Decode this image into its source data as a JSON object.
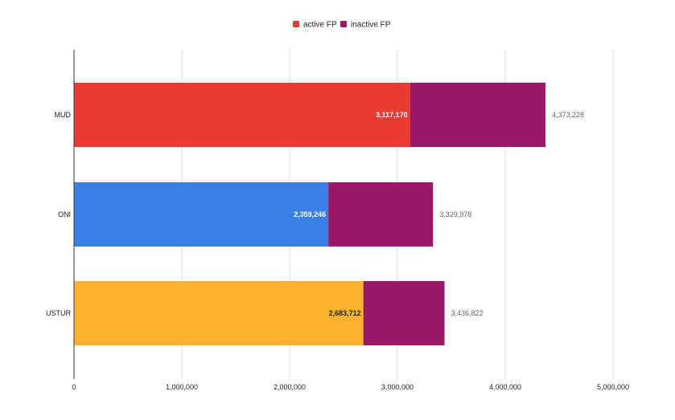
{
  "chart_data": {
    "type": "bar",
    "orientation": "horizontal",
    "stacked": true,
    "title": "",
    "xlabel": "",
    "ylabel": "",
    "categories": [
      "MUD",
      "ONI",
      "USTUR"
    ],
    "xlim": [
      0,
      5000000
    ],
    "ticks": [
      {
        "value": 0,
        "label": "0"
      },
      {
        "value": 1000000,
        "label": "1,000,000"
      },
      {
        "value": 2000000,
        "label": "2,000,000"
      },
      {
        "value": 3000000,
        "label": "3,000,000"
      },
      {
        "value": 4000000,
        "label": "4,000,000"
      },
      {
        "value": 5000000,
        "label": "5,000,000"
      }
    ],
    "grid": true,
    "legend_position": "top-center",
    "legend": [
      {
        "name": "active FP",
        "color": "#EA3A33"
      },
      {
        "name": "inactive FP",
        "color": "#9B1768"
      }
    ],
    "bars": [
      {
        "category": "MUD",
        "active_value": 3117170,
        "active_label": "3,117,170",
        "active_color": "#EA3A33",
        "active_label_color": "#ffffff",
        "total_value": 4373228,
        "total_label": "4,373,228",
        "inactive_color": "#9B1768"
      },
      {
        "category": "ONI",
        "active_value": 2359246,
        "active_label": "2,359,246",
        "active_color": "#3A7FE8",
        "active_label_color": "#ffffff",
        "total_value": 3329978,
        "total_label": "3,329,978",
        "inactive_color": "#9B1768"
      },
      {
        "category": "USTUR",
        "active_value": 2683712,
        "active_label": "2,683,712",
        "active_color": "#FBB12D",
        "active_label_color": "#222222",
        "total_value": 3436822,
        "total_label": "3,436,822",
        "inactive_color": "#9B1768"
      }
    ]
  }
}
